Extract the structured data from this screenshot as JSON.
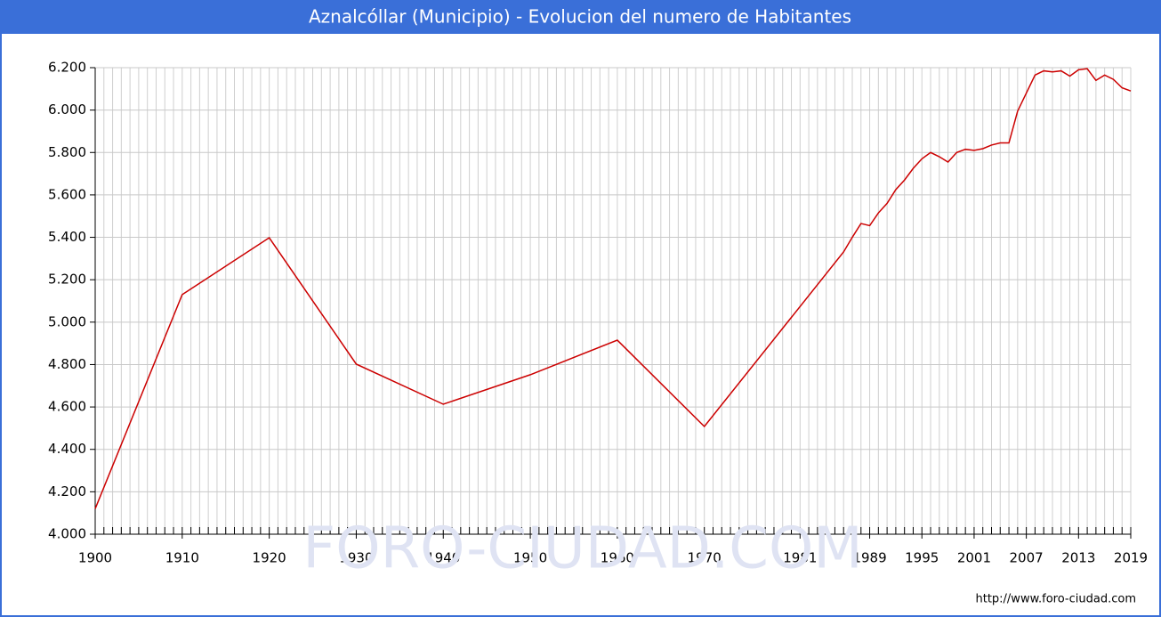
{
  "chart_data": {
    "type": "line",
    "title": "Aznalcóllar (Municipio) - Evolucion del numero de Habitantes",
    "watermark": "FORO-CIUDAD.COM",
    "source": "http://www.foro-ciudad.com",
    "x": [
      1900,
      1910,
      1920,
      1930,
      1940,
      1950,
      1960,
      1970,
      1986,
      1987,
      1988,
      1989,
      1990,
      1991,
      1992,
      1993,
      1994,
      1995,
      1996,
      1997,
      1998,
      1999,
      2000,
      2001,
      2002,
      2003,
      2004,
      2005,
      2006,
      2007,
      2008,
      2009,
      2010,
      2011,
      2012,
      2013,
      2014,
      2015,
      2016,
      2017,
      2018,
      2019
    ],
    "series": [
      {
        "name": "Habitantes",
        "color": "#cc0000",
        "values": [
          4120,
          5130,
          5398,
          4802,
          4613,
          4752,
          4915,
          4508,
          5331,
          5400,
          5465,
          5455,
          5515,
          5560,
          5625,
          5670,
          5725,
          5770,
          5800,
          5780,
          5755,
          5800,
          5815,
          5810,
          5818,
          5835,
          5845,
          5845,
          5995,
          6080,
          6165,
          6185,
          6180,
          6185,
          6160,
          6190,
          6195,
          6140,
          6165,
          6145,
          6105,
          6090
        ]
      }
    ],
    "xlim": [
      1900,
      2019
    ],
    "xticks": [
      1900,
      1910,
      1920,
      1930,
      1940,
      1950,
      1960,
      1970,
      1981,
      1989,
      1995,
      2001,
      2007,
      2013,
      2019
    ],
    "ylim": [
      4000,
      6200
    ],
    "yticks": [
      {
        "value": 4000,
        "label": "4.000"
      },
      {
        "value": 4200,
        "label": "4.200"
      },
      {
        "value": 4400,
        "label": "4.400"
      },
      {
        "value": 4600,
        "label": "4.600"
      },
      {
        "value": 4800,
        "label": "4.800"
      },
      {
        "value": 5000,
        "label": "5.000"
      },
      {
        "value": 5200,
        "label": "5.200"
      },
      {
        "value": 5400,
        "label": "5.400"
      },
      {
        "value": 5600,
        "label": "5.600"
      },
      {
        "value": 5800,
        "label": "5.800"
      },
      {
        "value": 6000,
        "label": "6.000"
      },
      {
        "value": 6200,
        "label": "6.200"
      }
    ],
    "grid": true
  }
}
